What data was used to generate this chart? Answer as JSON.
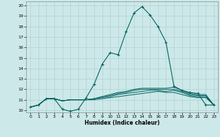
{
  "title": "",
  "xlabel": "Humidex (Indice chaleur)",
  "ylabel": "",
  "xlim": [
    -0.5,
    23.5
  ],
  "ylim": [
    9.8,
    20.4
  ],
  "xticks": [
    0,
    1,
    2,
    3,
    4,
    5,
    6,
    7,
    8,
    9,
    10,
    11,
    12,
    13,
    14,
    15,
    16,
    17,
    18,
    19,
    20,
    21,
    22,
    23
  ],
  "yticks": [
    10,
    11,
    12,
    13,
    14,
    15,
    16,
    17,
    18,
    19,
    20
  ],
  "background_color": "#cce8e8",
  "grid_color": "#aacccc",
  "line_color": "#006060",
  "lines": [
    [
      10.3,
      10.5,
      11.1,
      11.1,
      10.1,
      9.9,
      10.1,
      11.2,
      12.5,
      14.4,
      15.5,
      15.3,
      17.5,
      19.3,
      19.9,
      19.1,
      18.0,
      16.5,
      12.3,
      11.9,
      11.7,
      11.6,
      10.5,
      10.5
    ],
    [
      10.3,
      10.5,
      11.1,
      11.1,
      10.9,
      11.0,
      11.0,
      11.0,
      11.1,
      11.3,
      11.5,
      11.7,
      11.8,
      12.0,
      12.1,
      12.1,
      12.1,
      12.1,
      12.2,
      11.9,
      11.6,
      11.5,
      11.5,
      10.5
    ],
    [
      10.3,
      10.5,
      11.1,
      11.1,
      10.9,
      11.0,
      11.0,
      11.0,
      11.1,
      11.3,
      11.4,
      11.6,
      11.7,
      11.9,
      12.0,
      12.0,
      12.0,
      12.0,
      12.0,
      11.8,
      11.5,
      11.4,
      11.4,
      10.5
    ],
    [
      10.3,
      10.5,
      11.1,
      11.1,
      10.9,
      11.0,
      11.0,
      11.0,
      11.1,
      11.2,
      11.3,
      11.5,
      11.6,
      11.7,
      11.8,
      11.9,
      11.9,
      11.8,
      11.9,
      11.7,
      11.4,
      11.3,
      11.3,
      10.5
    ],
    [
      10.3,
      10.5,
      11.1,
      11.1,
      10.9,
      11.0,
      11.0,
      11.0,
      11.0,
      11.1,
      11.2,
      11.3,
      11.4,
      11.5,
      11.6,
      11.7,
      11.8,
      11.7,
      11.7,
      11.5,
      11.3,
      11.2,
      11.2,
      10.5
    ]
  ]
}
